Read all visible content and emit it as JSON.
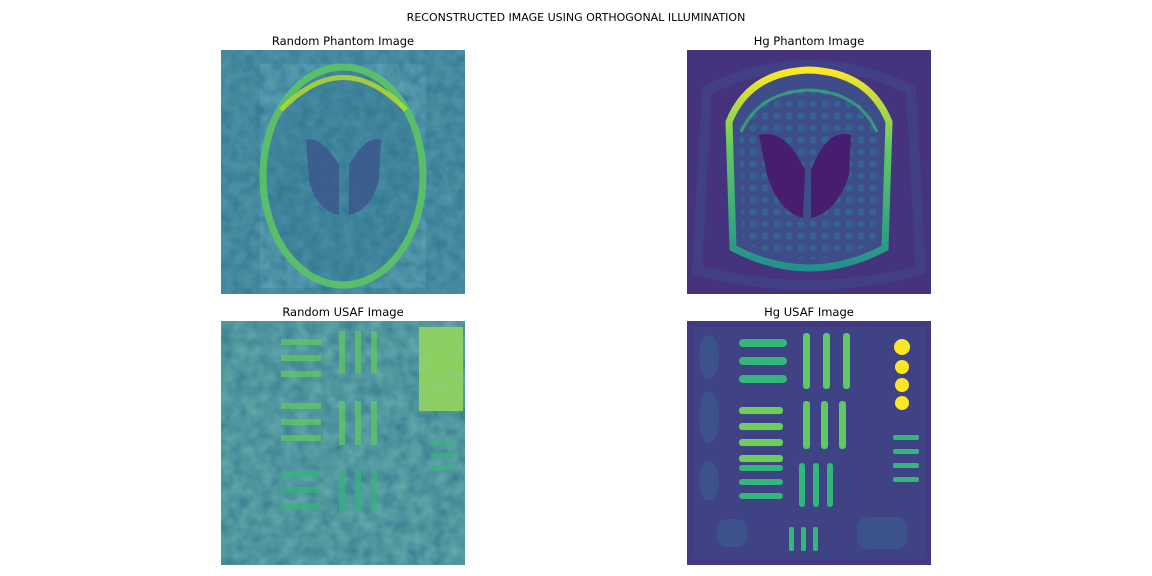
{
  "figure": {
    "suptitle": "RECONSTRUCTED IMAGE USING ORTHOGONAL ILLUMINATION",
    "colormap": "viridis",
    "colors": {
      "dark": "#440154",
      "mid_dark": "#3b528b",
      "mid": "#21918c",
      "mid_light": "#5ec962",
      "bright": "#fde725"
    }
  },
  "panels": [
    {
      "title": "Random Phantom Image",
      "kind": "random-phantom"
    },
    {
      "title": "Hg Phantom Image",
      "kind": "hg-phantom"
    },
    {
      "title": "Random USAF Image",
      "kind": "random-usaf"
    },
    {
      "title": "Hg USAF Image",
      "kind": "hg-usaf"
    }
  ]
}
